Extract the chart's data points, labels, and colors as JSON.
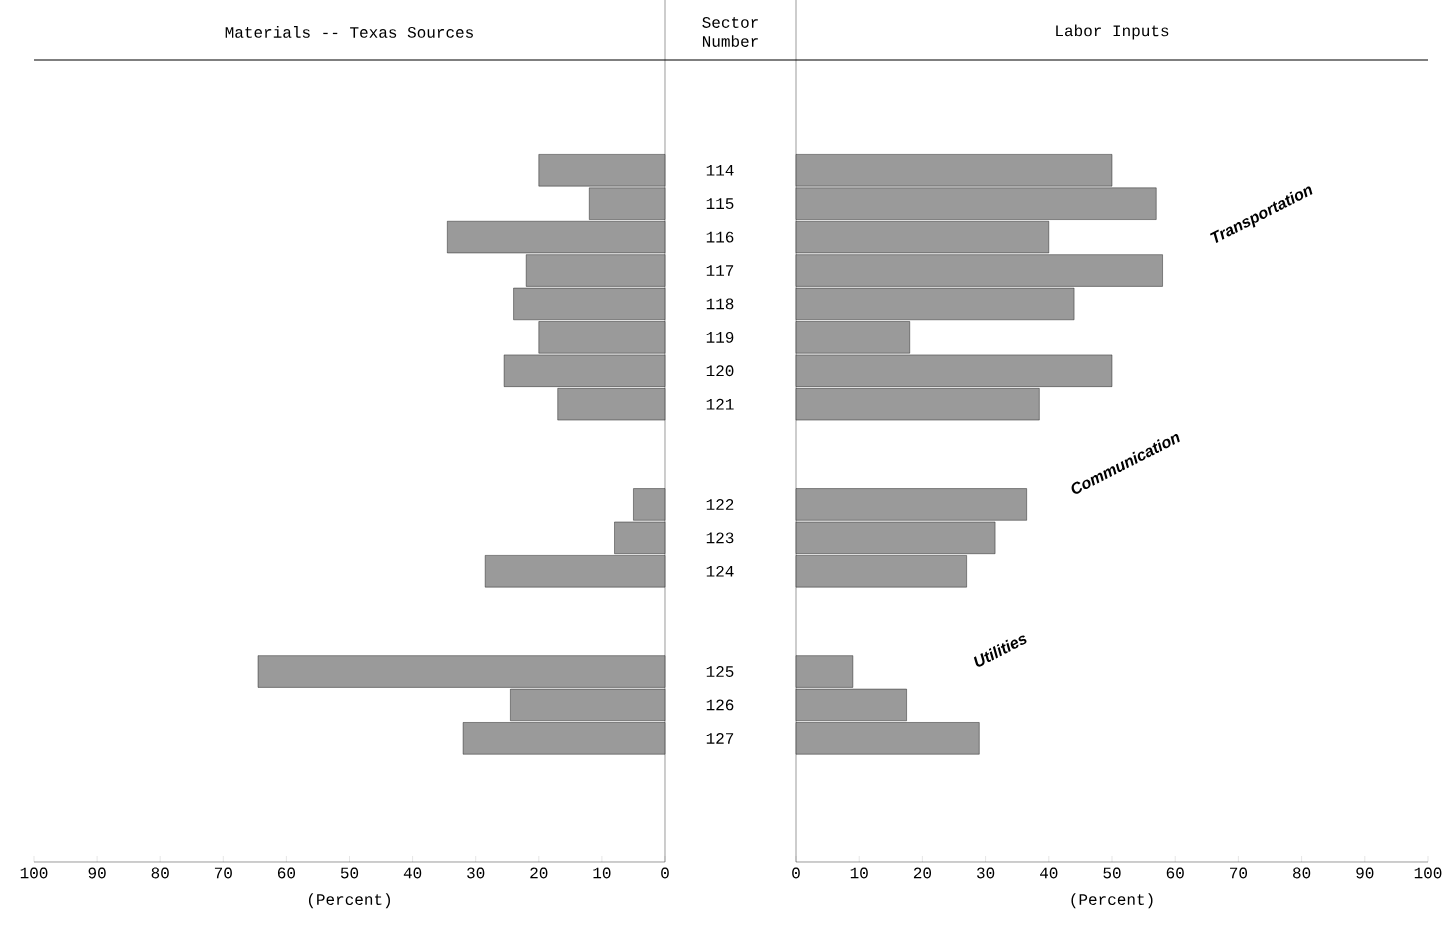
{
  "chart_data": [
    {
      "type": "bar",
      "orientation": "horizontal",
      "title": "Materials -- Texas Sources",
      "ylabel": "Sector Number",
      "xlabel": "(Percent)",
      "categories": [
        null,
        null,
        "114",
        "115",
        "116",
        "117",
        "118",
        "119",
        "120",
        "121",
        null,
        null,
        "122",
        "123",
        "124",
        null,
        null,
        "125",
        "126",
        "127",
        null,
        null,
        null
      ],
      "values": [
        null,
        null,
        20,
        12,
        34.5,
        22,
        24,
        20,
        25.5,
        17,
        null,
        null,
        5,
        8,
        28.5,
        null,
        null,
        64.5,
        24.5,
        32,
        null,
        null,
        null
      ],
      "color": "#9a9a9a",
      "xlim": [
        100,
        0
      ],
      "xticks": [
        0,
        10,
        20,
        30,
        40,
        50,
        60,
        70,
        80,
        90,
        100
      ]
    },
    {
      "type": "bar",
      "orientation": "horizontal",
      "title": "Labor Inputs",
      "xlabel": "(Percent)",
      "categories": [
        null,
        null,
        "114",
        "115",
        "116",
        "117",
        "118",
        "119",
        "120",
        "121",
        null,
        null,
        "122",
        "123",
        "124",
        null,
        null,
        "125",
        "126",
        "127",
        null,
        null,
        null
      ],
      "values": [
        null,
        null,
        50,
        57,
        40,
        58,
        44,
        18,
        50,
        38.5,
        null,
        null,
        36.5,
        31.5,
        27,
        null,
        null,
        9,
        17.5,
        29,
        null,
        null,
        null
      ],
      "color": "#9a9a9a",
      "xlim": [
        0,
        100
      ],
      "xticks": [
        0,
        10,
        20,
        30,
        40,
        50,
        60,
        70,
        80,
        90,
        100
      ],
      "tick_labels": "x",
      "annotations": [
        "Transportation",
        "Communication",
        "Utilities"
      ]
    }
  ]
}
